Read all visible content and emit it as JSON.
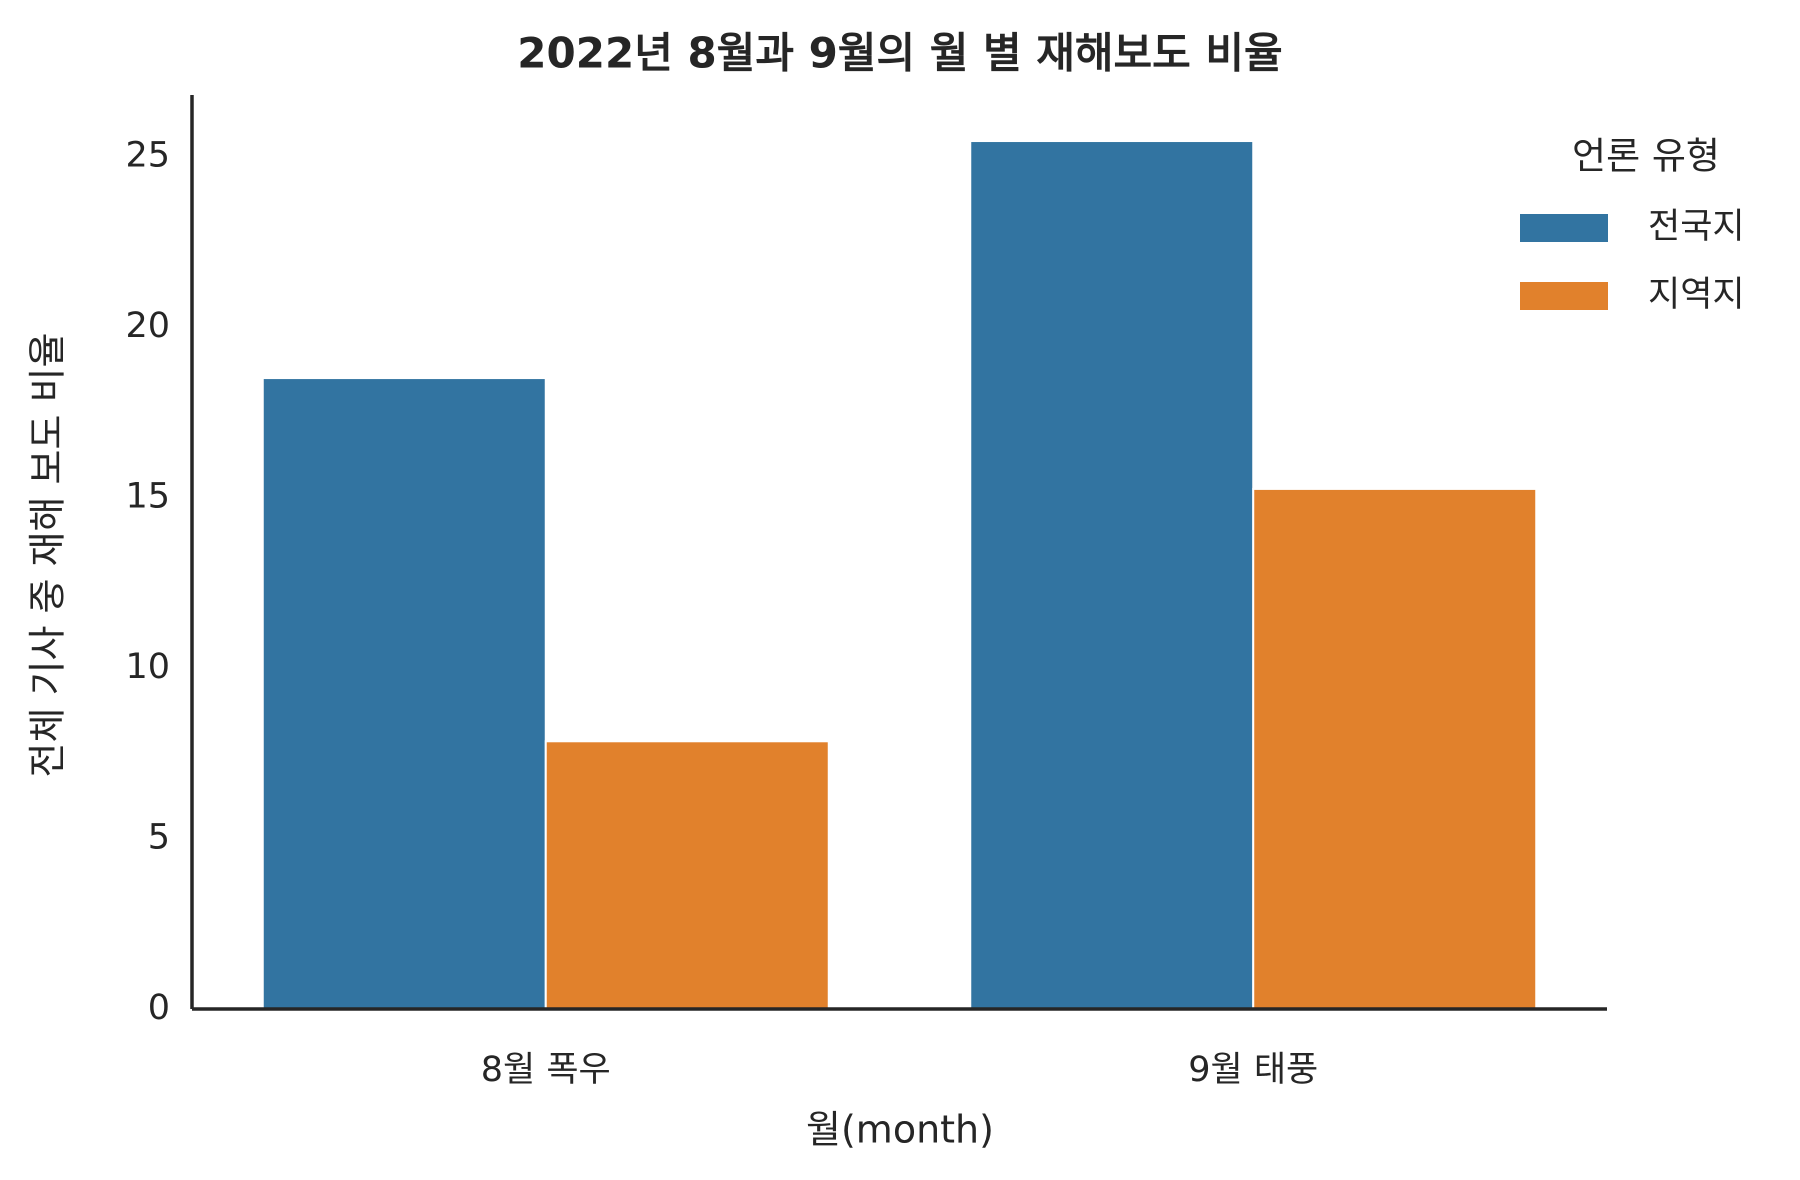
{
  "chart_data": {
    "type": "bar",
    "title": "2022년 8월과 9월의 월 별 재해보도 비율",
    "x_label": "월(month)",
    "y_label": "전체 기사 중 재해 보도 비율",
    "legend_title": "언론 유형",
    "legend_position": "upper right",
    "categories": [
      "8월 폭우",
      "9월 태풍"
    ],
    "series": [
      {
        "name": "전국지",
        "color": "#3274a1",
        "values": [
          18.5,
          25.45
        ]
      },
      {
        "name": "지역지",
        "color": "#e1812c",
        "values": [
          7.85,
          15.25
        ]
      }
    ],
    "ylim": [
      0,
      26.8
    ],
    "yticks": [
      0,
      5,
      10,
      15,
      20,
      25
    ],
    "grid": false
  }
}
